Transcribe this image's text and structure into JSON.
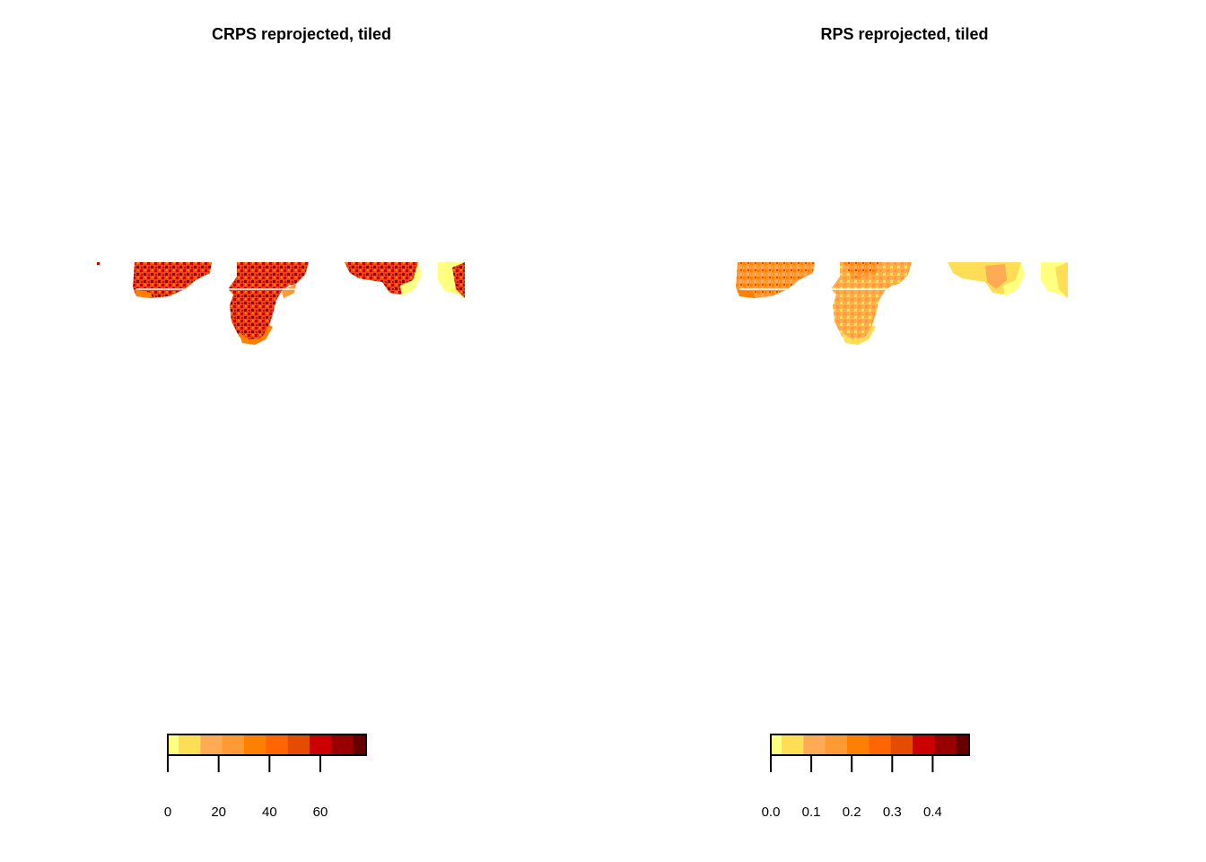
{
  "chart_data": [
    {
      "type": "heatmap",
      "title": "CRPS reprojected, tiled",
      "palette": [
        "#FFFF80",
        "#FFDD55",
        "#FFAA55",
        "#FF9933",
        "#FF8000",
        "#FF6600",
        "#E64C00",
        "#CC0000",
        "#990000",
        "#660000"
      ],
      "scale_range": [
        0,
        78
      ],
      "legend_ticks": [
        "0",
        "20",
        "40",
        "60"
      ],
      "legend_tick_values": [
        0,
        20,
        40,
        60
      ],
      "dominant_range": [
        30,
        70
      ]
    },
    {
      "type": "heatmap",
      "title": "RPS reprojected, tiled",
      "palette": [
        "#FFFF80",
        "#FFDD55",
        "#FFAA55",
        "#FF9933",
        "#FF8000",
        "#FF6600",
        "#E64C00",
        "#CC0000",
        "#990000",
        "#660000"
      ],
      "scale_range": [
        0,
        0.49
      ],
      "legend_ticks": [
        "0.0",
        "0.1",
        "0.2",
        "0.3",
        "0.4"
      ],
      "legend_tick_values": [
        0,
        0.1,
        0.2,
        0.3,
        0.4
      ],
      "dominant_range": [
        0.05,
        0.25
      ]
    }
  ]
}
